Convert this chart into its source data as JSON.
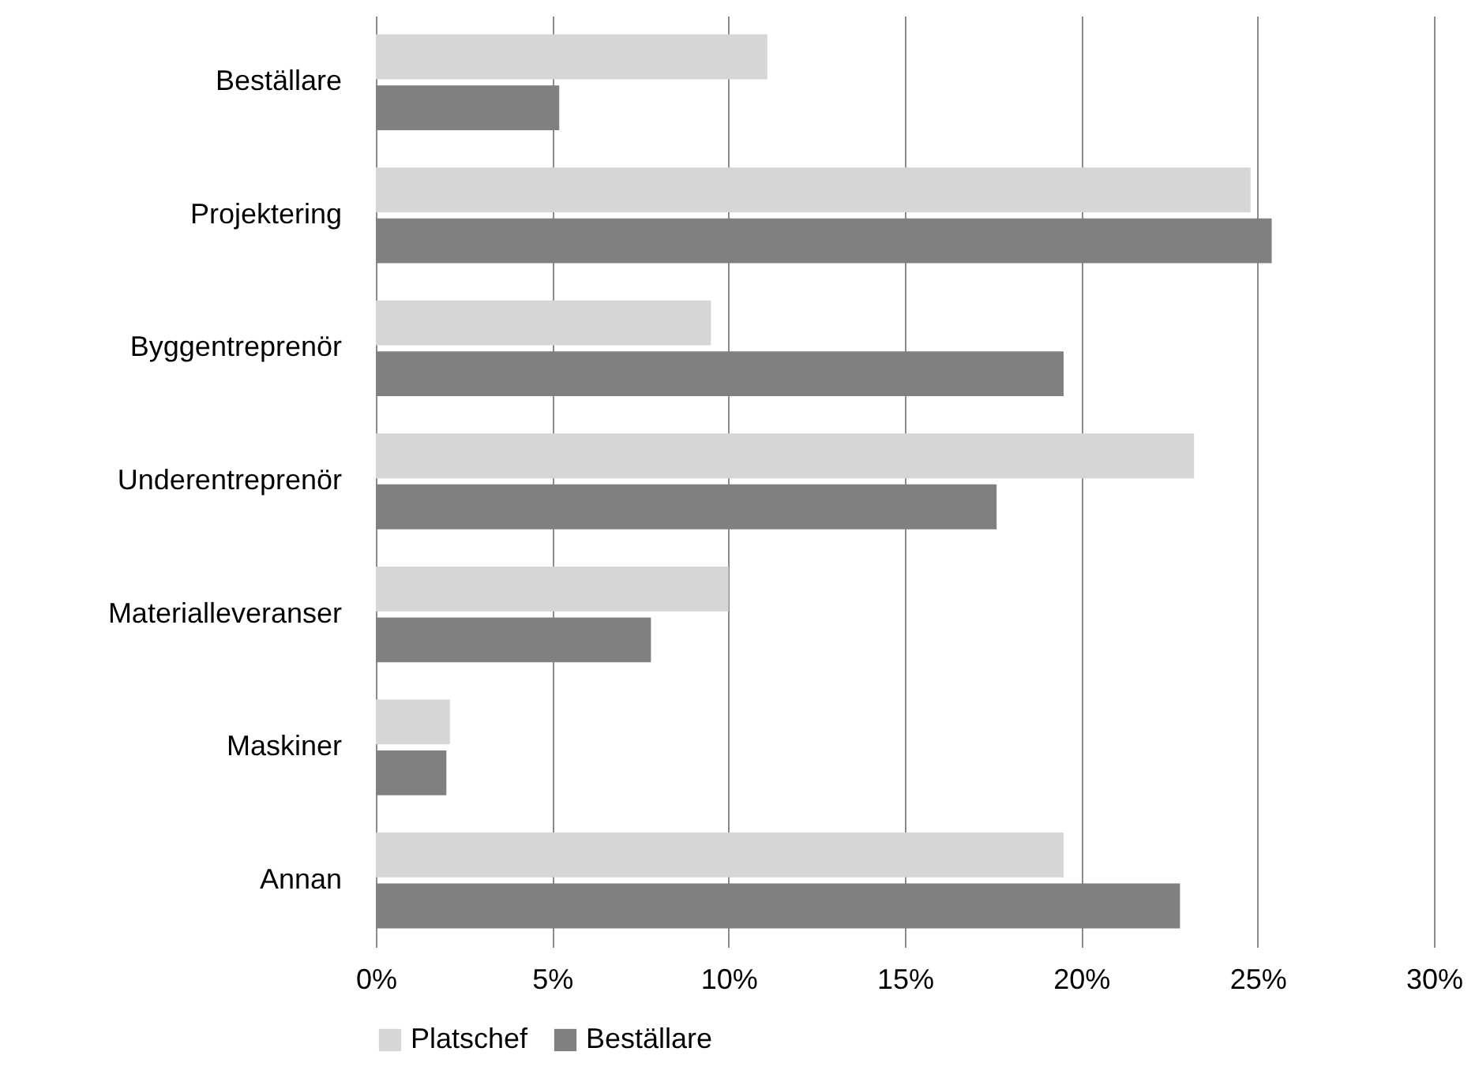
{
  "chart_data": {
    "type": "bar",
    "orientation": "horizontal",
    "categories": [
      "Beställare",
      "Projektering",
      "Byggentreprenör",
      "Underentreprenör",
      "Materialleveranser",
      "Maskiner",
      "Annan"
    ],
    "series": [
      {
        "name": "Platschef",
        "color": "#d6d6d6",
        "values": [
          11.1,
          24.8,
          9.5,
          23.2,
          10.0,
          2.1,
          19.5
        ]
      },
      {
        "name": "Beställare",
        "color": "#808080",
        "values": [
          5.2,
          25.4,
          19.5,
          17.6,
          7.8,
          2.0,
          22.8
        ]
      }
    ],
    "xlim": [
      0,
      30
    ],
    "xticks": [
      {
        "value": 0,
        "label": "0%"
      },
      {
        "value": 5,
        "label": "5%"
      },
      {
        "value": 10,
        "label": "10%"
      },
      {
        "value": 15,
        "label": "15%"
      },
      {
        "value": 20,
        "label": "20%"
      },
      {
        "value": 25,
        "label": "25%"
      },
      {
        "value": 30,
        "label": "30%"
      }
    ],
    "grid": "x",
    "legend": "bottom"
  }
}
